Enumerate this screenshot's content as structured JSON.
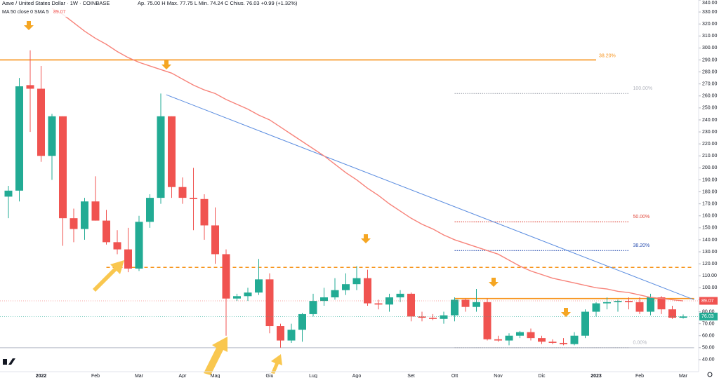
{
  "chart_data": {
    "type": "candlestick",
    "title": "Aave / United States Dollar · 1W · COINBASE",
    "ohlc_text": "Ap. 75.00  H  Max. 77.75  L  Min. 74.24  C  Chius. 76.03  +0.99 (+1.32%)",
    "categories": [
      null,
      null,
      null,
      "2022",
      null,
      null,
      null,
      null,
      "Feb",
      null,
      null,
      null,
      "Mar",
      null,
      null,
      null,
      "Apr",
      null,
      null,
      "Mag",
      null,
      null,
      null,
      null,
      "Giu",
      null,
      null,
      null,
      "Lug",
      null,
      null,
      null,
      "Ago",
      null,
      null,
      null,
      null,
      "Set",
      null,
      null,
      null,
      "Ott",
      null,
      null,
      null,
      "Nov",
      null,
      null,
      null,
      "Dic",
      null,
      null,
      null,
      null,
      "2023",
      null,
      null,
      null,
      "Feb",
      null,
      null,
      null,
      "Mar"
    ],
    "open": [
      176,
      181,
      269,
      266,
      210,
      243,
      158,
      149,
      172,
      156,
      138,
      132,
      116,
      155,
      175,
      243,
      184,
      175,
      174,
      152,
      128,
      91,
      93,
      96,
      107,
      68,
      56,
      65,
      78,
      89,
      92,
      98,
      103,
      108,
      87,
      86,
      92,
      95,
      76,
      75,
      74,
      77,
      90,
      84,
      88,
      57,
      56,
      60,
      63,
      58,
      55,
      54,
      53,
      60,
      80,
      87,
      88,
      89,
      88,
      80,
      92,
      82,
      75
    ],
    "high": [
      185,
      275,
      298,
      285,
      245,
      243,
      166,
      175,
      193,
      165,
      148,
      150,
      160,
      178,
      262,
      243,
      192,
      200,
      178,
      167,
      132,
      95,
      100,
      124,
      112,
      70,
      70,
      79,
      95,
      100,
      108,
      112,
      118,
      115,
      90,
      95,
      98,
      96,
      80,
      78,
      80,
      92,
      91,
      99,
      91,
      60,
      62,
      64,
      66,
      60,
      57,
      58,
      63,
      82,
      88,
      92,
      90,
      92,
      92,
      95,
      93,
      85,
      77.75
    ],
    "low": [
      158,
      172,
      230,
      205,
      190,
      135,
      138,
      140,
      156,
      136,
      128,
      113,
      114,
      150,
      170,
      175,
      170,
      148,
      140,
      120,
      60,
      89,
      89,
      94,
      62,
      50,
      54,
      55,
      76,
      85,
      90,
      94,
      98,
      85,
      82,
      80,
      88,
      72,
      72,
      73,
      70,
      72,
      80,
      80,
      56,
      55,
      52,
      58,
      56,
      53,
      53,
      52,
      52,
      58,
      76,
      82,
      80,
      82,
      78,
      77,
      78,
      74,
      74.24
    ],
    "close": [
      181,
      268,
      266,
      210,
      243,
      158,
      149,
      172,
      156,
      138,
      132,
      116,
      155,
      175,
      243,
      184,
      175,
      174,
      152,
      128,
      91,
      93,
      96,
      107,
      68,
      56,
      65,
      78,
      89,
      92,
      98,
      103,
      108,
      87,
      86,
      92,
      95,
      76,
      75,
      74,
      77,
      90,
      84,
      88,
      57,
      56,
      60,
      63,
      58,
      55,
      54,
      53,
      60,
      80,
      87,
      88,
      89,
      88,
      80,
      92,
      82,
      75,
      76.03
    ],
    "up_color": "#22ab94",
    "down_color": "#f05350",
    "ma": {
      "name": "MA 50 close 0 SMA 5",
      "color": "#f7837a",
      "values": [
        null,
        null,
        null,
        null,
        333,
        328,
        321,
        314,
        308,
        303,
        297,
        292,
        288,
        285,
        282,
        279,
        274,
        269,
        265,
        262,
        257,
        253,
        249,
        244,
        240,
        234,
        228,
        222,
        216,
        210,
        203,
        196,
        190,
        183,
        177,
        170,
        164,
        158,
        153,
        149,
        144,
        140,
        137,
        134,
        131,
        128,
        123,
        118,
        114,
        111,
        108,
        106,
        104,
        102,
        100,
        99,
        97,
        96,
        94,
        92,
        91,
        90,
        89.07
      ]
    },
    "ylim": [
      30,
      340
    ],
    "yticks": [
      {
        "value": 40,
        "label": "40.00"
      },
      {
        "value": 50,
        "label": "50.00"
      },
      {
        "value": 60,
        "label": "60.00"
      },
      {
        "value": 70,
        "label": "70.00"
      },
      {
        "value": 80,
        "label": "80.00"
      },
      {
        "value": 90,
        "label": "90.00"
      },
      {
        "value": 100,
        "label": "100.00"
      },
      {
        "value": 110,
        "label": "110.00"
      },
      {
        "value": 120,
        "label": "120.00"
      },
      {
        "value": 130,
        "label": "130.00"
      },
      {
        "value": 140,
        "label": "140.00"
      },
      {
        "value": 150,
        "label": "150.00"
      },
      {
        "value": 160,
        "label": "160.00"
      },
      {
        "value": 170,
        "label": "170.00"
      },
      {
        "value": 180,
        "label": "180.00"
      },
      {
        "value": 190,
        "label": "190.00"
      },
      {
        "value": 200,
        "label": "200.00"
      },
      {
        "value": 210,
        "label": "210.00"
      },
      {
        "value": 220,
        "label": "220.00"
      },
      {
        "value": 230,
        "label": "230.00"
      },
      {
        "value": 240,
        "label": "240.00"
      },
      {
        "value": 250,
        "label": "250.00"
      },
      {
        "value": 260,
        "label": "260.00"
      },
      {
        "value": 270,
        "label": "270.00"
      },
      {
        "value": 280,
        "label": "280.00"
      },
      {
        "value": 290,
        "label": "290.00"
      },
      {
        "value": 300,
        "label": "300.00"
      },
      {
        "value": 310,
        "label": "310.00"
      },
      {
        "value": 320,
        "label": "320.00"
      },
      {
        "value": 330,
        "label": "330.00"
      },
      {
        "value": 340,
        "label": "340.00"
      }
    ],
    "lines": [
      {
        "value": 290,
        "label": "38.20%",
        "color": "#f7931a",
        "style": "solid",
        "start": -1,
        "end": 54
      },
      {
        "value": 117,
        "color": "#f7931a",
        "style": "dashed",
        "start": 9,
        "end": 63
      },
      {
        "value": 91,
        "color": "#f7931a",
        "style": "solid",
        "start": 41,
        "end": 63
      },
      {
        "value": 50,
        "color": "#d1d4dc",
        "style": "solid",
        "start": -1,
        "end": 63
      }
    ],
    "fib_levels": [
      {
        "value": 262,
        "label": "100.00%",
        "color": "#b2b5be"
      },
      {
        "value": 155,
        "label": "50.00%",
        "color": "#e0473a"
      },
      {
        "value": 131,
        "label": "38.20%",
        "color": "#2a4fb0"
      },
      {
        "value": 50,
        "label": "0.00%",
        "color": "#b2b5be"
      }
    ],
    "fib_start": 41,
    "fib_end": 57,
    "trendline": {
      "color": "#5b8de0",
      "from": [
        14.5,
        261
      ],
      "to": [
        63,
        90
      ]
    }
  }
}
